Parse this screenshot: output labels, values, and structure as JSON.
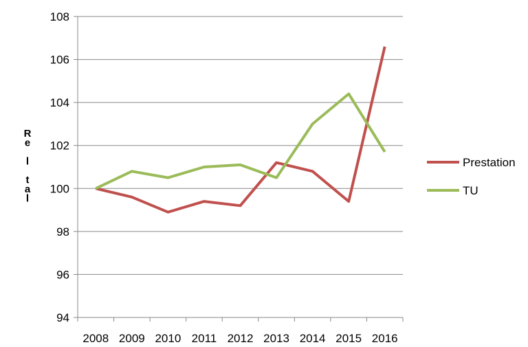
{
  "chart_data": {
    "type": "line",
    "title": "",
    "xlabel": "",
    "ylabel": "Re l tal",
    "categories": [
      "2008",
      "2009",
      "2010",
      "2011",
      "2012",
      "2013",
      "2014",
      "2015",
      "2016"
    ],
    "ylim": [
      94,
      108
    ],
    "yticks": [
      "94",
      "96",
      "98",
      "100",
      "102",
      "104",
      "106",
      "108"
    ],
    "grid": true,
    "legend_position": "right",
    "series": [
      {
        "name": "Prestation",
        "color": "#c0504d",
        "values": [
          100,
          99.6,
          98.9,
          99.4,
          99.2,
          101.2,
          100.8,
          99.4,
          106.6
        ]
      },
      {
        "name": "TU",
        "color": "#9bbb59",
        "values": [
          100,
          100.8,
          100.5,
          101.0,
          101.1,
          100.5,
          103.0,
          104.4,
          101.7
        ]
      }
    ]
  }
}
